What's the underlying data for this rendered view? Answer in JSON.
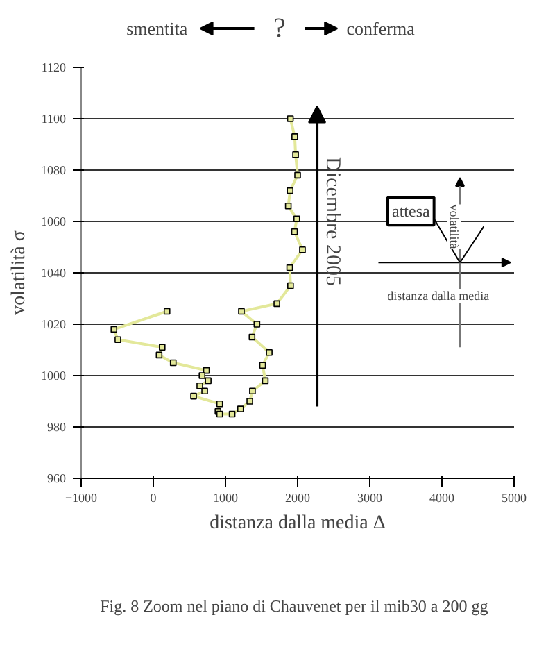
{
  "chart_data": {
    "type": "line",
    "xlabel": "distanza dalla media Δ",
    "ylabel": "volatilità σ",
    "xlim": [
      -1000,
      5000
    ],
    "xticks": [
      -1000,
      0,
      1000,
      2000,
      3000,
      4000,
      5000
    ],
    "ylim": [
      960,
      1120
    ],
    "yticks": [
      960,
      980,
      1000,
      1020,
      1040,
      1060,
      1080,
      1100,
      1120
    ],
    "grid": "y",
    "marker": "square",
    "line_style": "solid",
    "series": [
      {
        "color": "#e3e89a",
        "x": [
          190,
          -546,
          -491,
          123,
          80,
          276,
          736,
          675,
          761,
          644,
          712,
          558,
          920,
          896,
          920,
          1092,
          1209,
          1337,
          1374,
          1552,
          1515,
          1607,
          1368,
          1436,
          1221,
          1712,
          1902,
          1890,
          2067,
          1957,
          1988,
          1871,
          1896,
          2000,
          1972,
          1960,
          1900
        ],
        "values": [
          1025,
          1018,
          1014,
          1011,
          1008,
          1005,
          1002,
          1000,
          998,
          996,
          994,
          992,
          989,
          986,
          985,
          985,
          987,
          990,
          994,
          998,
          1004,
          1009,
          1015,
          1020,
          1025,
          1028,
          1035,
          1042,
          1049,
          1056,
          1061,
          1066,
          1072,
          1078,
          1086,
          1093,
          1100
        ]
      }
    ],
    "annotations": [
      "smentita",
      "?",
      "conferma",
      "Dicembre 2005",
      "attesa",
      "volatilità",
      "distanza dalla media",
      "Fig. 8 Zoom nel piano di Chauvenet per il mib30 a 200 gg"
    ]
  }
}
